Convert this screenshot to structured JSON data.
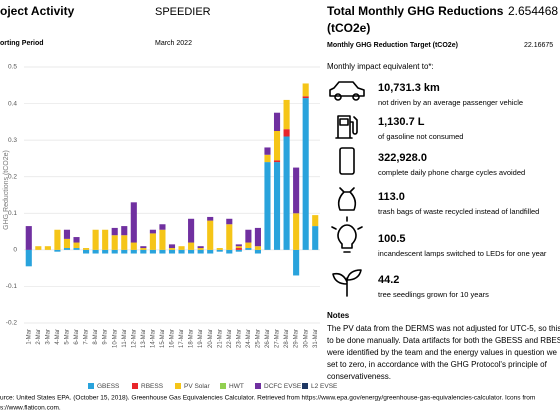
{
  "header": {
    "project_label": "oject Activity",
    "project": "SPEEDIER",
    "period_label": "orting Period",
    "period": "March 2022",
    "total_label_1": "Total Monthly GHG Reductions",
    "total_label_2": "(tCO2e)",
    "total_value": "2.654468",
    "target_label": "Monthly GHG Reduction Target (tCO2e)",
    "target_value": "22.16675"
  },
  "impact": {
    "title": "Monthly impact equivalent to*:",
    "items": [
      {
        "value": "10,731.3 km",
        "text": "not driven by an average passenger vehicle"
      },
      {
        "value": "1,130.7 L",
        "text": "of gasoline not consumed"
      },
      {
        "value": "322,928.0",
        "text": "complete daily phone charge cycles avoided"
      },
      {
        "value": "113.0",
        "text": "trash bags of waste recycled instead of landfilled"
      },
      {
        "value": "100.5",
        "text": "incandescent lamps switched to LEDs for one year"
      },
      {
        "value": "44.2",
        "text": "tree seedlings grown for 10 years"
      }
    ]
  },
  "notes": {
    "title": "Notes",
    "lines": [
      "The PV data from the DERMS was not adjusted for UTC-5, so this h",
      "to be done manually. Data artifacts for both the GBESS and RBESS",
      "were identified by the team and the energy values in question we",
      "set to zero, in accordance with the GHG Protocol's principle of",
      "conservativeness."
    ]
  },
  "footer": {
    "lines": [
      "urce: United States EPA. (October 15, 2018). Greenhouse Gas Equivalencies Calculator. Retrieved from https://www.epa.gov/energy/greenhouse-gas-equivalencies-calculator. Icons from",
      "s://www.flaticon.com."
    ]
  },
  "chart_data": {
    "type": "stacked_bar",
    "y_label": "GHG Reductions (tCO2e)",
    "ylim": [
      -0.2,
      0.5
    ],
    "yticks": [
      -0.2,
      -0.1,
      0,
      0.1,
      0.2,
      0.3,
      0.4,
      0.5
    ],
    "grid": true,
    "categories": [
      "1-Mar",
      "2-Mar",
      "3-Mar",
      "4-Mar",
      "5-Mar",
      "6-Mar",
      "7-Mar",
      "8-Mar",
      "9-Mar",
      "10-Mar",
      "11-Mar",
      "12-Mar",
      "13-Mar",
      "14-Mar",
      "15-Mar",
      "16-Mar",
      "17-Mar",
      "18-Mar",
      "19-Mar",
      "20-Mar",
      "21-Mar",
      "22-Mar",
      "23-Mar",
      "24-Mar",
      "25-Mar",
      "26-Mar",
      "27-Mar",
      "28-Mar",
      "29-Mar",
      "30-Mar",
      "31-Mar"
    ],
    "series": [
      {
        "name": "GBESS",
        "color": "#29a3dc",
        "values": [
          -0.045,
          0,
          0,
          -0.005,
          0.005,
          0.005,
          -0.01,
          -0.01,
          -0.01,
          -0.01,
          -0.01,
          -0.01,
          -0.01,
          -0.01,
          -0.01,
          -0.01,
          -0.01,
          -0.01,
          -0.01,
          -0.01,
          -0.005,
          -0.01,
          -0.005,
          0.005,
          -0.01,
          0.24,
          0.24,
          0.31,
          -0.07,
          0.415,
          0.065
        ]
      },
      {
        "name": "RBESS",
        "color": "#e8262b",
        "values": [
          0,
          0,
          0,
          0,
          0,
          0,
          0,
          0,
          0,
          0,
          0,
          0,
          0,
          0,
          0,
          0,
          0,
          0,
          0,
          0,
          0,
          0,
          0.005,
          0,
          0,
          0,
          0.005,
          0.02,
          0,
          0.005,
          0
        ]
      },
      {
        "name": "PV Solar",
        "color": "#f5c518",
        "values": [
          0,
          0.01,
          0.01,
          0.055,
          0.025,
          0.015,
          0.005,
          0.055,
          0.055,
          0.04,
          0.04,
          0.02,
          0.005,
          0.045,
          0.055,
          0.005,
          0.01,
          0.02,
          0.005,
          0.08,
          0.005,
          0.07,
          0.005,
          0.015,
          0.01,
          0.02,
          0.08,
          0.08,
          0.1,
          0.035,
          0.03
        ]
      },
      {
        "name": "HWT",
        "color": "#92d050",
        "values": [
          0,
          0,
          0,
          0,
          0,
          0,
          0,
          0,
          0,
          0,
          0,
          0,
          0,
          0,
          0,
          0,
          0,
          0,
          0,
          0,
          0,
          0,
          0,
          0,
          0,
          0,
          0,
          0,
          0,
          0,
          0
        ]
      },
      {
        "name": "DCFC EVSE",
        "color": "#7030a0",
        "values": [
          0.065,
          0,
          0,
          0,
          0.025,
          0.015,
          0,
          0,
          0,
          0.02,
          0.025,
          0.11,
          0.005,
          0.01,
          0.015,
          0.01,
          0,
          0.065,
          0.005,
          0.01,
          0,
          0.015,
          0.005,
          0.035,
          0.05,
          0.02,
          0.05,
          0,
          0.125,
          0,
          0
        ]
      },
      {
        "name": "L2 EVSE",
        "color": "#1f3864",
        "values": [
          0,
          0,
          0,
          0,
          0,
          0,
          0,
          0,
          0,
          0,
          0,
          0,
          0,
          0,
          0,
          0,
          0,
          0,
          0,
          0,
          0,
          0,
          0,
          0,
          0,
          0,
          0,
          0,
          0,
          0,
          0
        ]
      }
    ]
  }
}
